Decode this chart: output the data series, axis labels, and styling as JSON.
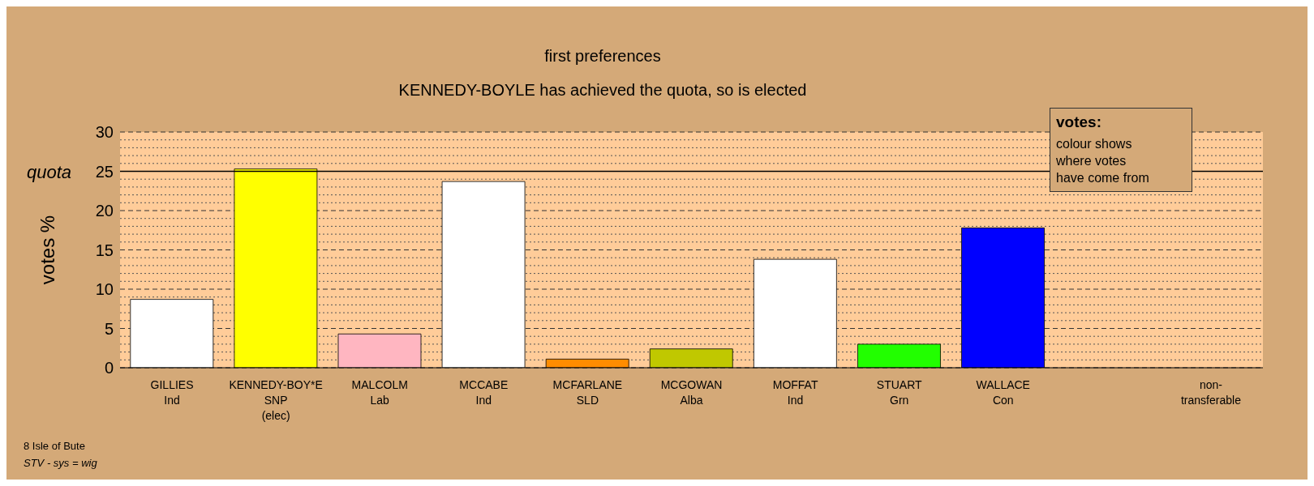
{
  "chart_data": {
    "type": "bar",
    "title": "first preferences",
    "subtitle": "KENNEDY-BOYLE has achieved the quota, so is elected",
    "ylabel": "votes %",
    "categories": [
      "GILLIES\nInd",
      "KENNEDY-BOY*E\nSNP\n(elec)",
      "MALCOLM\nLab",
      "MCCABE\nInd",
      "MCFARLANE\nSLD",
      "MCGOWAN\nAlba",
      "MOFFAT\nInd",
      "STUART\nGrn",
      "WALLACE\nCon",
      null,
      "non-\ntransferable"
    ],
    "values": [
      8.7,
      25.3,
      4.3,
      23.7,
      1.1,
      2.4,
      13.8,
      3.0,
      17.8,
      null,
      0
    ],
    "colors": [
      "#ffffff",
      "#ffff00",
      "#ffb6c1",
      "#ffffff",
      "#ff8c00",
      "#c0c800",
      "#ffffff",
      "#22ff00",
      "#0000ff",
      "#ffffff",
      "#ffffff"
    ],
    "ylim": [
      0,
      30
    ],
    "yticks": [
      0,
      {
        "value": 1,
        "label": null
      },
      {
        "value": 2,
        "label": null
      },
      {
        "value": 3,
        "label": null
      },
      {
        "value": 4,
        "label": null
      },
      5,
      {
        "value": 6,
        "label": null
      },
      {
        "value": 7,
        "label": null
      },
      {
        "value": 8,
        "label": null
      },
      {
        "value": 9,
        "label": null
      },
      10,
      {
        "value": 11,
        "label": null
      },
      {
        "value": 12,
        "label": null
      },
      {
        "value": 13,
        "label": null
      },
      {
        "value": 14,
        "label": null
      },
      15,
      {
        "value": 16,
        "label": null
      },
      {
        "value": 17,
        "label": null
      },
      {
        "value": 18,
        "label": null
      },
      {
        "value": 19,
        "label": null
      },
      20,
      {
        "value": 21,
        "label": null
      },
      {
        "value": 22,
        "label": null
      },
      {
        "value": 23,
        "label": null
      },
      {
        "value": 24,
        "label": null
      },
      25,
      {
        "value": 26,
        "label": null
      },
      {
        "value": 27,
        "label": null
      },
      {
        "value": 28,
        "label": null
      },
      {
        "value": 29,
        "label": null
      },
      30
    ],
    "grid": "y",
    "ref_lines": [
      {
        "axis": "y",
        "value": 25,
        "label": "quota",
        "color": "#000000",
        "line_style": "solid"
      }
    ],
    "annotations": [
      "votes:",
      "colour shows\nwhere votes\nhave come from",
      "8 Isle of Bute",
      "STV - sys = wig"
    ]
  }
}
